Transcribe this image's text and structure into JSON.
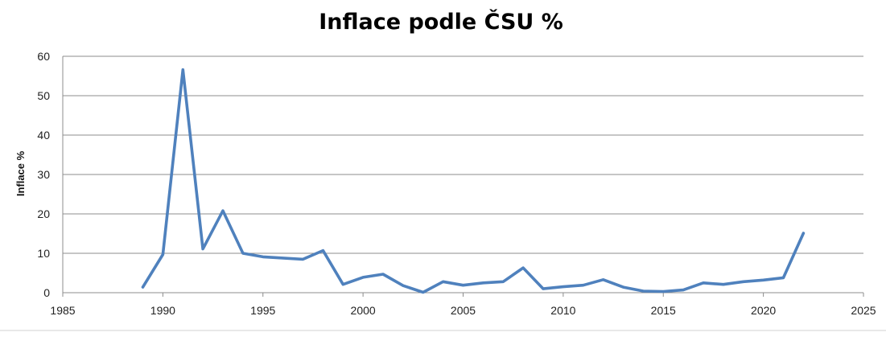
{
  "chart_data": {
    "type": "line",
    "title": "Inflace podle ČSU %",
    "xlabel": "",
    "ylabel": "Inflace %",
    "xlim": [
      1985,
      2025
    ],
    "ylim": [
      0,
      60
    ],
    "x_ticks": [
      1985,
      1990,
      1995,
      2000,
      2005,
      2010,
      2015,
      2020,
      2025
    ],
    "y_ticks": [
      0,
      10,
      20,
      30,
      40,
      50,
      60
    ],
    "grid": "horizontal",
    "legend": "none",
    "series_color": "#4f81bd",
    "series": [
      {
        "x": [
          1989,
          1990,
          1991,
          1992,
          1993,
          1994,
          1995,
          1996,
          1997,
          1998,
          1999,
          2000,
          2001,
          2002,
          2003,
          2004,
          2005,
          2006,
          2007,
          2008,
          2009,
          2010,
          2011,
          2012,
          2013,
          2014,
          2015,
          2016,
          2017,
          2018,
          2019,
          2020,
          2021,
          2022
        ],
        "values": [
          1.4,
          9.7,
          56.6,
          11.1,
          20.8,
          10.0,
          9.1,
          8.8,
          8.5,
          10.7,
          2.1,
          3.9,
          4.7,
          1.8,
          0.1,
          2.8,
          1.9,
          2.5,
          2.8,
          6.3,
          1.0,
          1.5,
          1.9,
          3.3,
          1.4,
          0.4,
          0.3,
          0.7,
          2.5,
          2.1,
          2.8,
          3.2,
          3.8,
          15.1
        ]
      }
    ]
  }
}
